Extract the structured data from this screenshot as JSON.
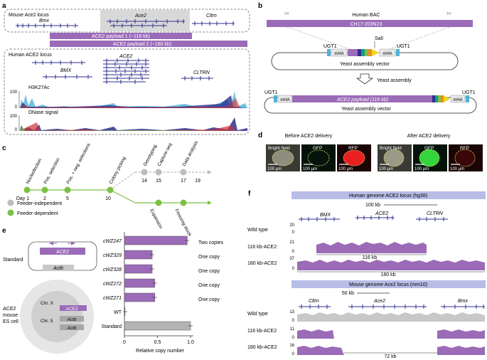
{
  "panels": {
    "a": "a",
    "b": "b",
    "c": "c",
    "d": "d",
    "e": "e",
    "f": "f"
  },
  "colors": {
    "purple": "#9b6bb8",
    "purple_light": "#c9a9da",
    "navy": "#2e2e8f",
    "grey_band": "#d8d8d8",
    "green": "#7ac143",
    "grey_dot": "#bdbdbd",
    "yellow": "#f2d41c",
    "cyan": "#4fb3d9",
    "orange": "#f08a24",
    "blue_lightbar": "#b7bde6"
  },
  "a": {
    "mouse_locus_label": "Mouse Ace2 locus",
    "mouse_genes": [
      "Bmx",
      "Ace2",
      "Cltrn"
    ],
    "payload1": "ACE2 payload 1 (~116 kb)",
    "payload2": "ACE2 payload 2 (~180 kb)",
    "human_locus_label": "Human ACE2 locus",
    "human_genes": [
      "ACE2",
      "BMX",
      "CLTRN"
    ],
    "track1_label": "H3K27Ac",
    "track1_ticks": [
      "100",
      "0"
    ],
    "track2_label": "DNase signal",
    "track2_ticks": [
      "200",
      "0"
    ]
  },
  "b": {
    "title": "Human BAC",
    "bac_id": "CH17-203N23",
    "sali": "SalI",
    "ugt1": "UGT1",
    "mha": "mHA",
    "vector": "Yeast assembly vector",
    "assembly": "Yeast assembly",
    "payload": "ACE2 payload (116 kb)"
  },
  "c": {
    "days": [
      "Day 1",
      "2",
      "5",
      "10",
      "14",
      "15",
      "17",
      "19"
    ],
    "steps_top": [
      "Nucleofection",
      "Pos. selection",
      "Pos. + neg. selections",
      "Colony picking",
      "Genotyping",
      "Capture-seq",
      "Data analysis"
    ],
    "steps_bottom": [
      "Expansion",
      "Freezing stock"
    ],
    "legend": [
      "Feeder-independent",
      "Feeder-dependent"
    ]
  },
  "d": {
    "before": "Before ACE2 delivery",
    "after": "After ACE2 delivery",
    "channels": [
      "Bright field",
      "GFP",
      "RFP"
    ],
    "scale": "100 μm"
  },
  "e": {
    "standard": "Standard",
    "ace2": "ACE2",
    "actb": "Actb",
    "chrx": "Chr. X",
    "chr5": "Chr. 5",
    "cell_label": [
      "ACE2",
      "mouse",
      "ES cell"
    ],
    "xlabel": "Relative copy number",
    "copy_labels": [
      "Two copies",
      "One copy",
      "One copy",
      "One copy",
      "One copy"
    ]
  },
  "f": {
    "human_header": "Human genome ACE2 locus (hg38)",
    "scale_h": "100 kb",
    "human_genes": [
      "BMX",
      "ACE2",
      "CLTRN"
    ],
    "tracks_h": [
      {
        "label": "Wild type",
        "max": "20"
      },
      {
        "label": "116 kb-ACE2",
        "max": "21"
      },
      {
        "label": "180 kb-ACE2",
        "max": "37"
      }
    ],
    "len116": "116 kb",
    "len180": "180 kb",
    "mouse_header": "Mouse genome Ace2 locus (mm10)",
    "scale_m": "50 kb",
    "mouse_genes": [
      "Cltrn",
      "Ace2",
      "Bmx"
    ],
    "tracks_m": [
      {
        "label": "Wild type",
        "max": "13"
      },
      {
        "label": "116 kb-ACE2",
        "max": "11"
      },
      {
        "label": "180 kb-ACE2",
        "max": "16"
      }
    ],
    "del72": "72 kb",
    "zero": "0"
  },
  "chart_data": {
    "type": "bar",
    "title": "",
    "categories": [
      "cWZ247",
      "cWZ329",
      "cWZ328",
      "cWZ272",
      "cWZ271",
      "WT",
      "Standard"
    ],
    "values": [
      0.95,
      0.42,
      0.42,
      0.46,
      0.46,
      0.01,
      1.0
    ],
    "xlabel": "Relative copy number",
    "ylabel": "",
    "xlim": [
      0,
      1.0
    ],
    "xticks": [
      "0",
      "0.5",
      "1.0"
    ],
    "colors": [
      "#9b6bb8",
      "#9b6bb8",
      "#9b6bb8",
      "#9b6bb8",
      "#9b6bb8",
      "#9b6bb8",
      "#b3b3b3"
    ]
  }
}
